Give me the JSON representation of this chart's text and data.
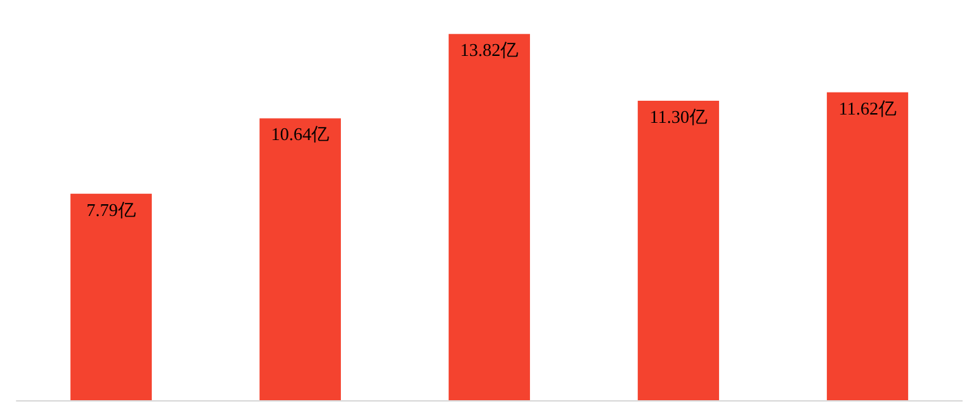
{
  "chart_data": {
    "type": "bar",
    "categories": [
      null,
      null,
      null,
      null,
      null
    ],
    "values": [
      7.79,
      10.64,
      13.82,
      11.3,
      11.62
    ],
    "value_labels": [
      "7.79亿",
      "10.64亿",
      "13.82亿",
      "11.30亿",
      "11.62亿"
    ],
    "color": "#f4432f"
  }
}
